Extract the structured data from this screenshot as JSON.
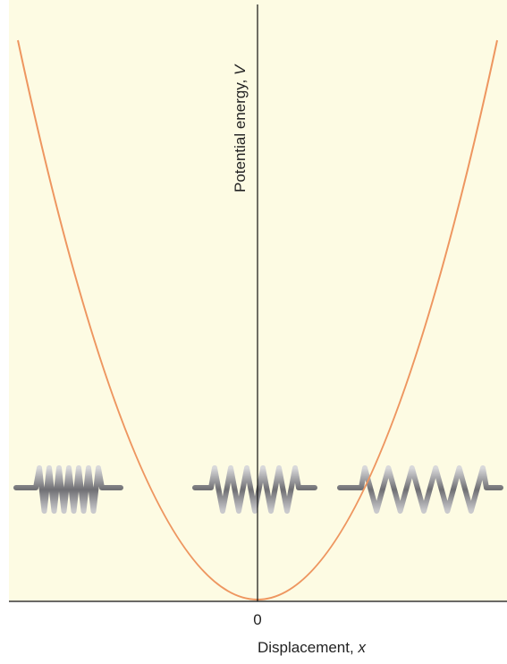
{
  "y_axis": {
    "label": "Potential energy,",
    "symbol": "V"
  },
  "x_axis": {
    "origin": "0",
    "label": "Displacement,",
    "symbol": "x"
  }
}
